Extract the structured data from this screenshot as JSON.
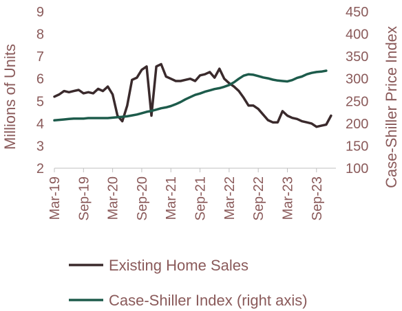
{
  "chart_data": {
    "type": "line",
    "title": "",
    "ylabel": "Millions of Units",
    "y2label": "Case-Shiller Price Index",
    "ylim": [
      2,
      9
    ],
    "y2lim": [
      100,
      450
    ],
    "yticks": [
      "2",
      "3",
      "4",
      "5",
      "6",
      "7",
      "8",
      "9"
    ],
    "y2ticks": [
      "100",
      "150",
      "200",
      "250",
      "300",
      "350",
      "400",
      "450"
    ],
    "x_tick_labels": [
      "Mar-19",
      "Sep-19",
      "Mar-20",
      "Sep-20",
      "Mar-21",
      "Sep-21",
      "Mar-22",
      "Sep-22",
      "Mar-23",
      "Sep-23"
    ],
    "legend_position": "bottom",
    "grid": false,
    "series": [
      {
        "name": "Existing Home Sales",
        "axis": "left",
        "color": "#3a2a2c",
        "x": [
          "Mar-19",
          "Apr-19",
          "May-19",
          "Jun-19",
          "Jul-19",
          "Aug-19",
          "Sep-19",
          "Oct-19",
          "Nov-19",
          "Dec-19",
          "Jan-20",
          "Feb-20",
          "Mar-20",
          "Apr-20",
          "May-20",
          "Jun-20",
          "Jul-20",
          "Aug-20",
          "Sep-20",
          "Oct-20",
          "Nov-20",
          "Dec-20",
          "Jan-21",
          "Feb-21",
          "Mar-21",
          "Apr-21",
          "May-21",
          "Jun-21",
          "Jul-21",
          "Aug-21",
          "Sep-21",
          "Oct-21",
          "Nov-21",
          "Dec-21",
          "Jan-22",
          "Feb-22",
          "Mar-22",
          "Apr-22",
          "May-22",
          "Jun-22",
          "Jul-22",
          "Aug-22",
          "Sep-22",
          "Oct-22",
          "Nov-22",
          "Dec-22",
          "Jan-23",
          "Feb-23",
          "Mar-23",
          "Apr-23",
          "May-23",
          "Jun-23",
          "Jul-23",
          "Aug-23",
          "Sep-23",
          "Oct-23",
          "Nov-23",
          "Dec-23"
        ],
        "values": [
          5.2,
          5.3,
          5.45,
          5.4,
          5.45,
          5.5,
          5.35,
          5.4,
          5.35,
          5.55,
          5.45,
          5.65,
          5.3,
          4.35,
          4.1,
          4.8,
          5.95,
          6.05,
          6.4,
          6.55,
          4.35,
          6.55,
          6.65,
          6.1,
          6.0,
          5.9,
          5.9,
          5.95,
          6.0,
          5.9,
          6.15,
          6.2,
          6.3,
          6.05,
          6.45,
          6.0,
          5.8,
          5.65,
          5.45,
          5.15,
          4.8,
          4.8,
          4.65,
          4.4,
          4.15,
          4.05,
          4.05,
          4.55,
          4.35,
          4.25,
          4.2,
          4.1,
          4.05,
          4.0,
          3.85,
          3.9,
          3.95,
          4.35
        ]
      },
      {
        "name": "Case-Shiller Index (right axis)",
        "axis": "right",
        "color": "#1d5b4b",
        "x": [
          "Mar-19",
          "Apr-19",
          "May-19",
          "Jun-19",
          "Jul-19",
          "Aug-19",
          "Sep-19",
          "Oct-19",
          "Nov-19",
          "Dec-19",
          "Jan-20",
          "Feb-20",
          "Mar-20",
          "Apr-20",
          "May-20",
          "Jun-20",
          "Jul-20",
          "Aug-20",
          "Sep-20",
          "Oct-20",
          "Nov-20",
          "Dec-20",
          "Jan-21",
          "Feb-21",
          "Mar-21",
          "Apr-21",
          "May-21",
          "Jun-21",
          "Jul-21",
          "Aug-21",
          "Sep-21",
          "Oct-21",
          "Nov-21",
          "Dec-21",
          "Jan-22",
          "Feb-22",
          "Mar-22",
          "Apr-22",
          "May-22",
          "Jun-22",
          "Jul-22",
          "Aug-22",
          "Sep-22",
          "Oct-22",
          "Nov-22",
          "Dec-22",
          "Jan-23",
          "Feb-23",
          "Mar-23",
          "Apr-23",
          "May-23",
          "Jun-23",
          "Jul-23",
          "Aug-23",
          "Sep-23",
          "Oct-23",
          "Nov-23"
        ],
        "values": [
          207,
          208,
          209,
          210,
          211,
          211,
          211,
          212,
          212,
          212,
          212,
          212,
          213,
          214,
          215,
          216,
          218,
          220,
          223,
          226,
          228,
          231,
          234,
          236,
          239,
          243,
          248,
          254,
          259,
          264,
          267,
          271,
          274,
          277,
          279,
          282,
          286,
          292,
          300,
          307,
          310,
          309,
          306,
          303,
          301,
          298,
          296,
          295,
          294,
          297,
          302,
          305,
          310,
          313,
          315,
          316,
          318
        ]
      }
    ]
  }
}
